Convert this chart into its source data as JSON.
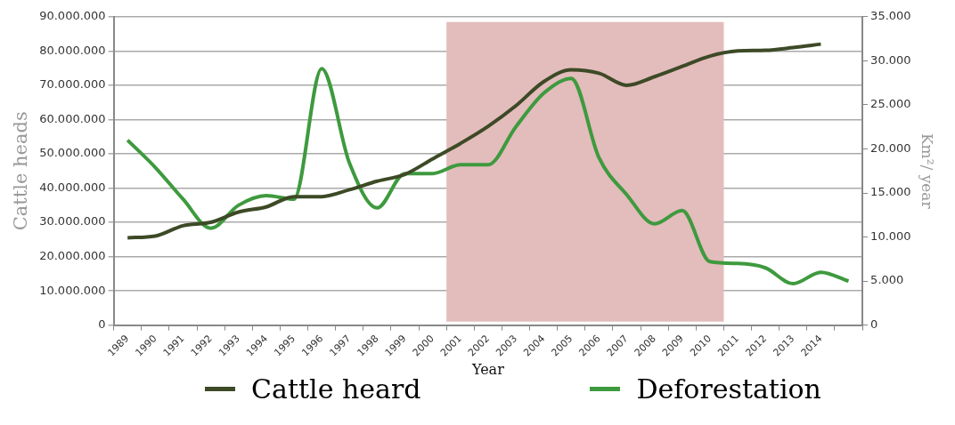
{
  "chart_data": {
    "type": "line",
    "xlabel": "Year",
    "ylabel": "Cattle heads",
    "y2label": "Km²/ year",
    "categories": [
      "1989",
      "1990",
      "1991",
      "1992",
      "1993",
      "1994",
      "1995",
      "1996",
      "1997",
      "1998",
      "1999",
      "2000",
      "2001",
      "2002",
      "2003",
      "2004",
      "2005",
      "2006",
      "2007",
      "2008",
      "2009",
      "2010",
      "2011",
      "2012",
      "2013",
      "2014",
      null
    ],
    "series": [
      {
        "name": "Cattle heard",
        "color": "#3d4a26",
        "values": [
          25500000,
          26000000,
          29000000,
          30000000,
          33000000,
          34500000,
          37500000,
          37500000,
          39500000,
          42000000,
          44000000,
          48500000,
          53000000,
          58000000,
          64000000,
          71000000,
          74500000,
          73500000,
          70000000,
          72500000,
          75500000,
          78500000,
          80000000,
          80200000,
          81000000,
          82000000,
          null
        ]
      },
      {
        "name": "Deforestation",
        "color": "#3e9a3e",
        "axis": "y2",
        "values": [
          21000,
          17900,
          14300,
          11000,
          13600,
          14700,
          14300,
          29100,
          18400,
          13300,
          17200,
          17200,
          18200,
          18200,
          22500,
          26300,
          28000,
          19000,
          14800,
          11500,
          13000,
          7200,
          7000,
          6500,
          4700,
          6000,
          5000
        ]
      }
    ],
    "ylim": [
      0,
      90000000
    ],
    "yticks": [
      {
        "value": 0,
        "label": "0"
      },
      {
        "value": 10000000,
        "label": "10.000.000"
      },
      {
        "value": 20000000,
        "label": "20.000.000"
      },
      {
        "value": 30000000,
        "label": "30.000.000"
      },
      {
        "value": 40000000,
        "label": "40.000.000"
      },
      {
        "value": 50000000,
        "label": "50.000.000"
      },
      {
        "value": 60000000,
        "label": "60.000.000"
      },
      {
        "value": 70000000,
        "label": "70.000.000"
      },
      {
        "value": 80000000,
        "label": "80.000.000"
      },
      {
        "value": 90000000,
        "label": "90.000.000"
      }
    ],
    "y2lim": [
      0,
      35000
    ],
    "y2ticks": [
      {
        "value": 0,
        "label": "0"
      },
      {
        "value": 5000,
        "label": "5.000"
      },
      {
        "value": 10000,
        "label": "10.000"
      },
      {
        "value": 15000,
        "label": "15.000"
      },
      {
        "value": 20000,
        "label": "20.000"
      },
      {
        "value": 25000,
        "label": "25.000"
      },
      {
        "value": 30000,
        "label": "30.000"
      },
      {
        "value": 35000,
        "label": "35.000"
      }
    ],
    "bands": [
      {
        "axis": "x",
        "from": "2001",
        "to": "2010",
        "color": "#e3bcbc"
      }
    ],
    "grid": "y",
    "legend": "bottom",
    "marker": "none",
    "line_style": "solid"
  }
}
